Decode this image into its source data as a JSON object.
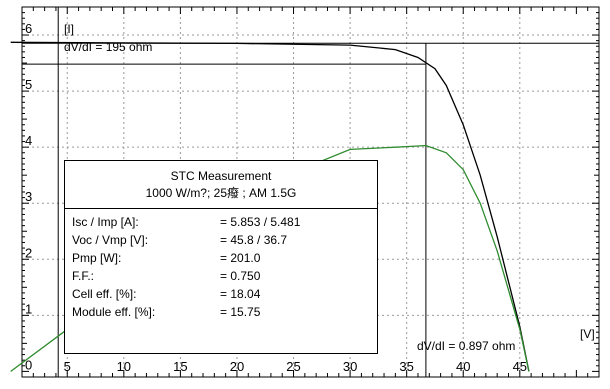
{
  "chart_data": {
    "type": "line",
    "xlabel": "[V]",
    "ylabel": "[I]",
    "xlim": [
      1,
      52
    ],
    "ylim": [
      -0.1,
      6.5
    ],
    "x_ticks": [
      5,
      10,
      15,
      20,
      25,
      30,
      35,
      40,
      45
    ],
    "y_ticks": [
      0,
      1,
      2,
      3,
      4,
      5,
      6
    ],
    "grid": true,
    "series": [
      {
        "color": "#000000",
        "x": [
          0,
          10,
          20,
          30,
          34,
          36,
          37.5,
          38.5,
          40,
          41.5,
          43,
          44,
          45,
          45.8
        ],
        "y": [
          5.87,
          5.86,
          5.85,
          5.82,
          5.74,
          5.6,
          5.4,
          5.1,
          4.4,
          3.5,
          2.4,
          1.6,
          0.8,
          0.0
        ]
      },
      {
        "color": "#2e8b2e",
        "x": [
          0,
          5,
          10,
          15,
          20,
          25,
          30,
          34,
          36,
          36.7,
          38.5,
          40,
          41.5,
          43,
          44,
          45,
          45.8
        ],
        "y": [
          0.0,
          0.75,
          1.5,
          2.2,
          2.9,
          3.55,
          3.96,
          4.0,
          4.02,
          4.03,
          3.9,
          3.6,
          3.0,
          2.15,
          1.45,
          0.75,
          0.0
        ]
      }
    ],
    "annotations": {
      "top": "dV/dI = 195 ohm",
      "bottom": "dV/dI = 0.897 ohm"
    },
    "reference_lines": {
      "isc": 5.853,
      "imp": 5.481,
      "vmp": 36.7,
      "v_left": 4.2
    }
  },
  "table": {
    "title": "STC Measurement",
    "subtitle": "1000 W/m?;  25癈 ;  AM 1.5G",
    "rows": [
      {
        "label": "Isc / Imp [A]:",
        "value": "= 5.853 / 5.481"
      },
      {
        "label": "Voc / Vmp [V]:",
        "value": "= 45.8 / 36.7"
      },
      {
        "label": "Pmp [W]:",
        "value": "= 201.0"
      },
      {
        "label": "F.F.:",
        "value": "= 0.750"
      },
      {
        "label": "Cell eff. [%]:",
        "value": "= 18.04"
      },
      {
        "label": "Module eff. [%]:",
        "value": "= 15.75"
      }
    ]
  }
}
